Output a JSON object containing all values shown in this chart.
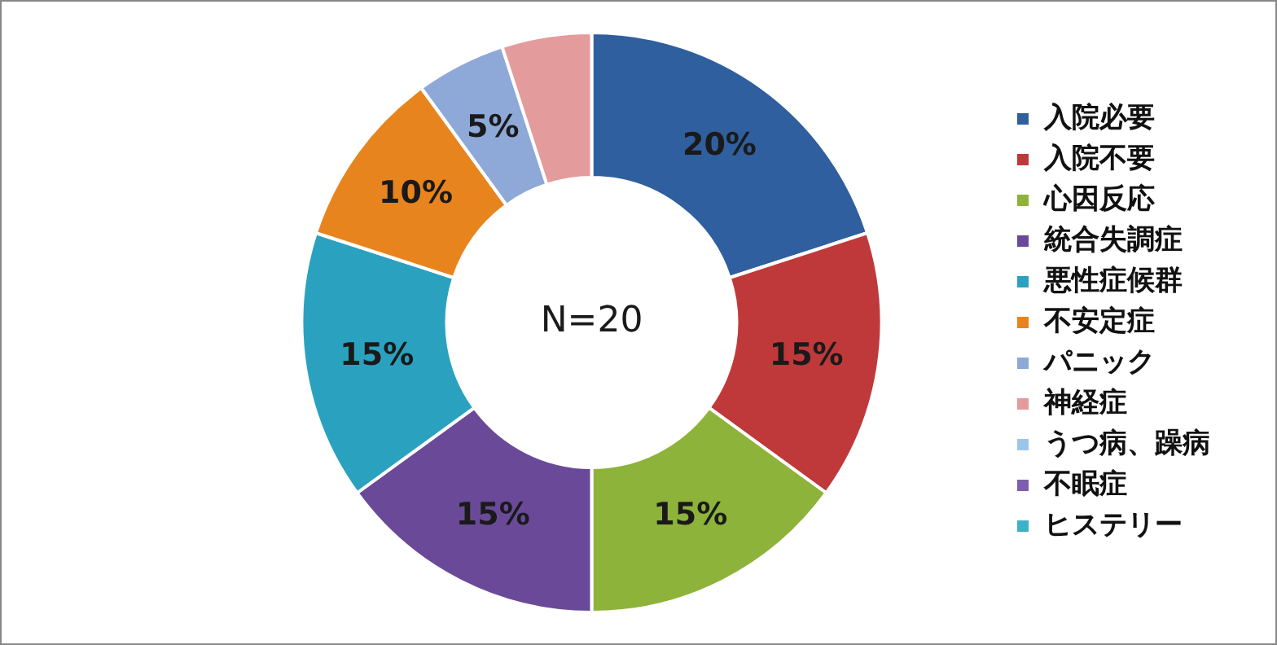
{
  "chart_data": {
    "type": "donut",
    "categories": [
      "入院必要",
      "入院不要",
      "心因反応",
      "統合失調症",
      "悪性症候群",
      "不安定症",
      "パニック",
      "神経症",
      "うつ病、躁病",
      "不眠症",
      "ヒステリー"
    ],
    "values": [
      20,
      15,
      15,
      15,
      15,
      10,
      5,
      5,
      0,
      0,
      0
    ],
    "colors": [
      "#2f5f9e",
      "#c0393a",
      "#8db33a",
      "#6a4a98",
      "#2aa2bf",
      "#e8841d",
      "#8ea9d8",
      "#e49b9b",
      "#9cc6e8",
      "#7d5fae",
      "#3bb2c9"
    ],
    "value_labels": [
      "20%",
      "15%",
      "15%",
      "15%",
      "15%",
      "10%",
      "5%",
      null,
      null,
      null,
      null
    ],
    "annotations": [
      "N=20"
    ],
    "legend": "right"
  }
}
